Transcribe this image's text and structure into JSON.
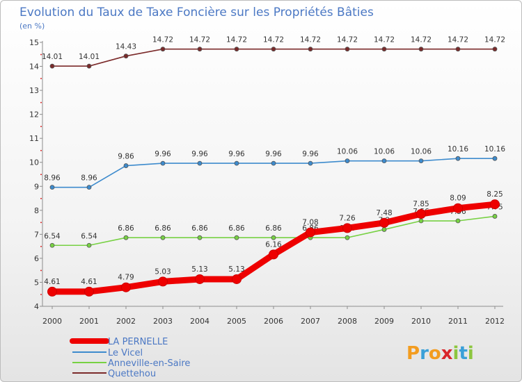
{
  "chart_data": {
    "type": "line",
    "title": "Evolution du Taux de Taxe Foncière sur les Propriétés Bâties",
    "subtitle": "(en %)",
    "xlabel": "",
    "ylabel": "",
    "ylim": [
      4,
      15
    ],
    "y_ticks": [
      "4",
      "5",
      "6",
      "7",
      "8",
      "9",
      "10",
      "11",
      "12",
      "13",
      "14",
      "15"
    ],
    "categories": [
      "2000",
      "2001",
      "2002",
      "2003",
      "2004",
      "2005",
      "2006",
      "2007",
      "2008",
      "2009",
      "2010",
      "2011",
      "2012"
    ],
    "series": [
      {
        "name": "LA PERNELLE",
        "color": "#ee0000",
        "values": [
          4.61,
          4.61,
          4.79,
          5.03,
          5.13,
          5.13,
          6.16,
          7.08,
          7.26,
          7.48,
          7.85,
          8.09,
          8.25
        ],
        "labels": [
          "4.61",
          "4.61",
          "4.79",
          "5.03",
          "5.13",
          "5.13",
          "6.16",
          "7.08",
          "7.26",
          "7.48",
          "7.85",
          "8.09",
          "8.25"
        ]
      },
      {
        "name": "Le Vicel",
        "color": "#3d8bcd",
        "values": [
          8.96,
          8.96,
          9.86,
          9.96,
          9.96,
          9.96,
          9.96,
          9.96,
          10.06,
          10.06,
          10.06,
          10.16,
          10.16
        ],
        "labels": [
          "8.96",
          "8.96",
          "9.86",
          "9.96",
          "9.96",
          "9.96",
          "9.96",
          "9.96",
          "10.06",
          "10.06",
          "10.06",
          "10.16",
          "10.16"
        ]
      },
      {
        "name": "Anneville-en-Saire",
        "color": "#77d143",
        "values": [
          6.54,
          6.54,
          6.86,
          6.86,
          6.86,
          6.86,
          6.86,
          6.86,
          6.86,
          7.2,
          7.56,
          7.56,
          7.75
        ],
        "labels": [
          "6.54",
          "6.54",
          "6.86",
          "6.86",
          "6.86",
          "6.86",
          "6.86",
          "6.86",
          "6.86",
          "7.2",
          "7.56",
          "7.56",
          "7.75"
        ]
      },
      {
        "name": "Quettehou",
        "color": "#7b2a2a",
        "values": [
          14.01,
          14.01,
          14.43,
          14.72,
          14.72,
          14.72,
          14.72,
          14.72,
          14.72,
          14.72,
          14.72,
          14.72,
          14.72
        ],
        "labels": [
          "14.01",
          "14.01",
          "14.43",
          "14.72",
          "14.72",
          "14.72",
          "14.72",
          "14.72",
          "14.72",
          "14.72",
          "14.72",
          "14.72",
          "14.72"
        ]
      }
    ],
    "legend_position": "bottom-left",
    "grid": false
  },
  "logo": {
    "text": "Proxiti",
    "letter_colors": [
      "#f39c1f",
      "#3aa0d8",
      "#f39c1f",
      "#d9262b",
      "#8cc63f",
      "#3aa0d8",
      "#8cc63f"
    ]
  }
}
